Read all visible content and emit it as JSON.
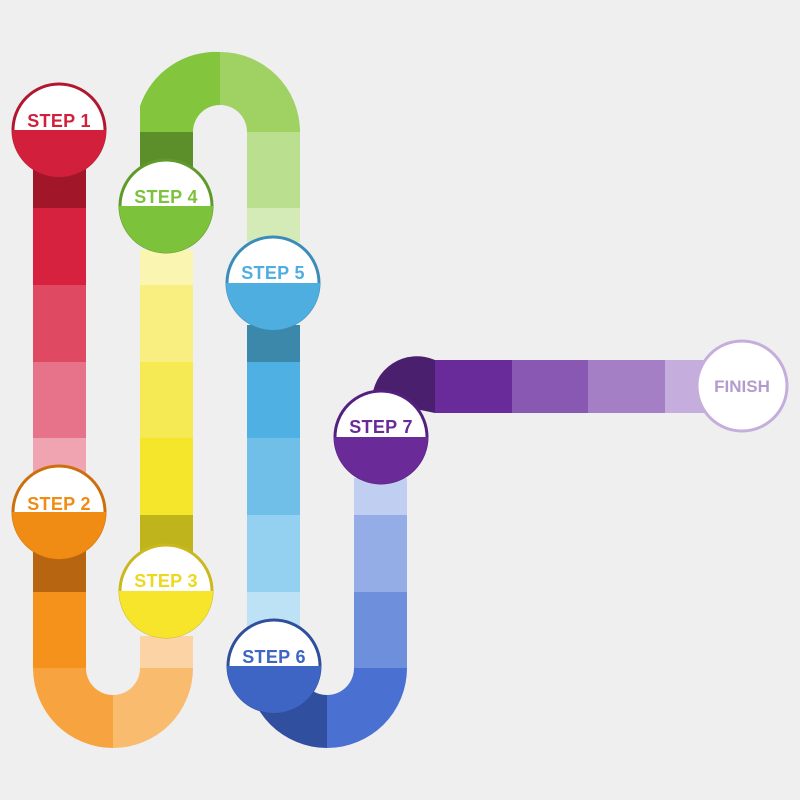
{
  "steps": [
    {
      "label": "STEP 1",
      "color": "#d11f3c",
      "edge": "#b01830"
    },
    {
      "label": "STEP 2",
      "color": "#f08c13",
      "edge": "#cc6f0c"
    },
    {
      "label": "STEP 3",
      "color": "#f6e52b",
      "edge": "#c9b91f"
    },
    {
      "label": "STEP 4",
      "color": "#7cc23b",
      "edge": "#5f9a2b"
    },
    {
      "label": "STEP 5",
      "color": "#4eaee0",
      "edge": "#3a8db8"
    },
    {
      "label": "STEP 6",
      "color": "#3f65c4",
      "edge": "#2e4f9c"
    },
    {
      "label": "STEP 7",
      "color": "#6a2a97",
      "edge": "#542080"
    }
  ],
  "finish": {
    "label": "FINISH",
    "color": "#c6aedc",
    "text_color": "#b49bcd"
  }
}
